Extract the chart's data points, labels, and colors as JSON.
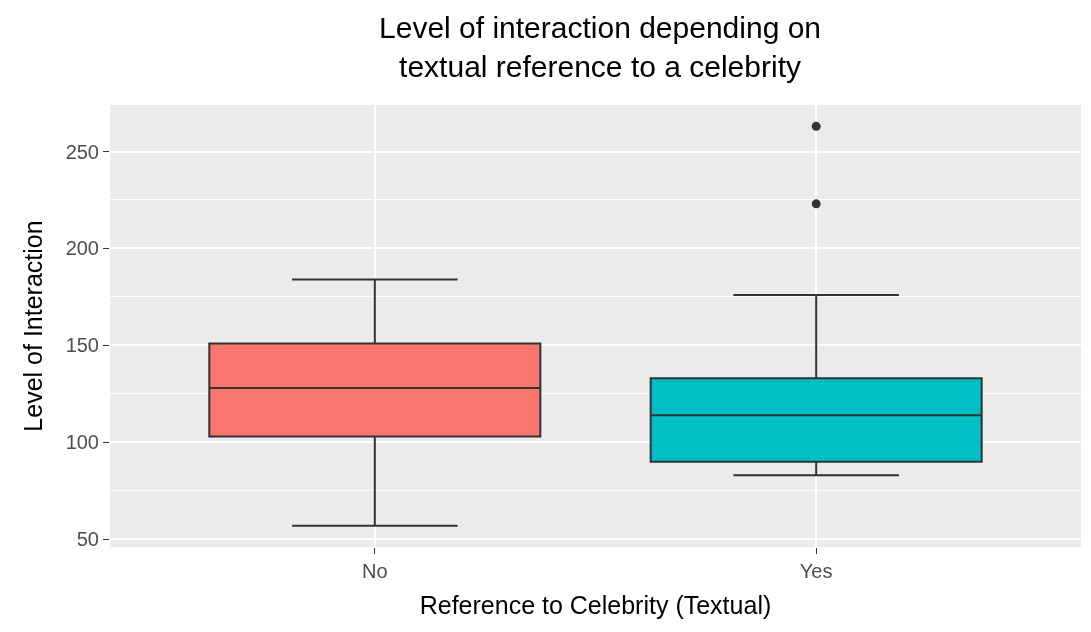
{
  "chart_data": {
    "type": "box",
    "title": "Level of interaction depending on\ntextual reference to a celebrity",
    "xlabel": "Reference to Celebrity (Textual)",
    "ylabel": "Level of Interaction",
    "categories": [
      "No",
      "Yes"
    ],
    "colors": [
      "#f8766d",
      "#00bfc4"
    ],
    "boxes": [
      {
        "low": 57,
        "q1": 103,
        "median": 128,
        "q3": 151,
        "high": 184
      },
      {
        "low": 83,
        "q1": 90,
        "median": 114,
        "q3": 133,
        "high": 176,
        "outliers": [
          223,
          263
        ]
      }
    ],
    "ylim": [
      46,
      274
    ],
    "yticks": [
      50,
      100,
      150,
      200,
      250
    ],
    "grid": true
  }
}
